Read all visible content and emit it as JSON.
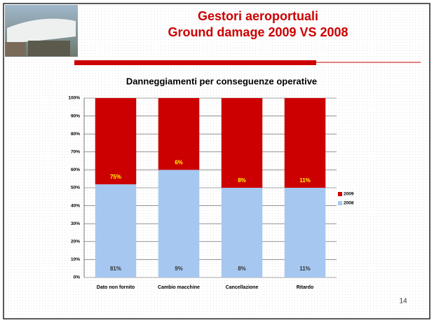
{
  "header": {
    "title": [
      "Gestori aeroportuali",
      "Ground damage 2009 VS 2008"
    ]
  },
  "page_number": "14",
  "chart_data": {
    "type": "percent_stacked_bar",
    "title": "Danneggiamenti per conseguenze operative",
    "categories": [
      "Dato non fornito",
      "Cambio macchine",
      "Cancellazione",
      "Ritardo"
    ],
    "series": [
      {
        "name": "2008",
        "color": "#a6c8f0",
        "values": [
          81,
          9,
          8,
          11
        ],
        "value_labels": [
          "81%",
          "9%",
          "8%",
          "11%"
        ],
        "label_color": "#333333"
      },
      {
        "name": "2009",
        "color": "#cc0000",
        "values": [
          75,
          6,
          8,
          11
        ],
        "value_labels": [
          "75%",
          "6%",
          "8%",
          "11%"
        ],
        "label_color": "#ffff00"
      }
    ],
    "ylim": [
      0,
      100
    ],
    "yticks": [
      {
        "value": 0,
        "label": "0%"
      },
      {
        "value": 10,
        "label": "10%"
      },
      {
        "value": 20,
        "label": "20%"
      },
      {
        "value": 30,
        "label": "30%"
      },
      {
        "value": 40,
        "label": "40%"
      },
      {
        "value": 50,
        "label": "50%"
      },
      {
        "value": 60,
        "label": "60%"
      },
      {
        "value": 70,
        "label": "70%"
      },
      {
        "value": 80,
        "label": "80%"
      },
      {
        "value": 90,
        "label": "90%"
      },
      {
        "value": 100,
        "label": "100%"
      }
    ],
    "grid": true,
    "legend": "right"
  }
}
